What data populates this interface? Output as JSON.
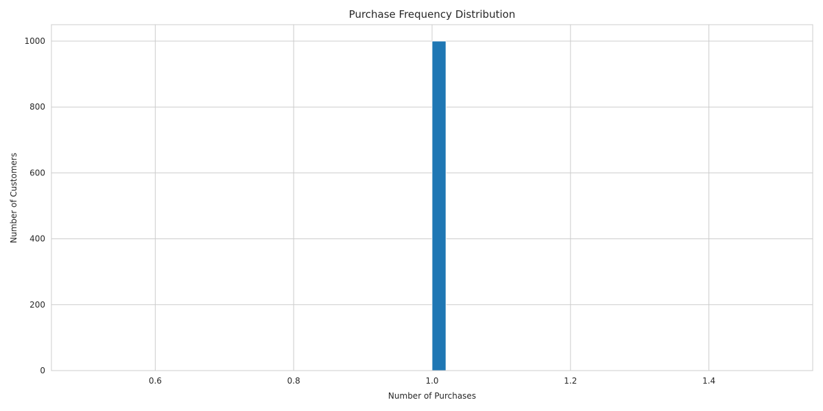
{
  "chart_data": {
    "type": "bar",
    "title": "Purchase Frequency Distribution",
    "xlabel": "Number of Purchases",
    "ylabel": "Number of Customers",
    "xlim": [
      0.45,
      1.55
    ],
    "ylim": [
      0,
      1050
    ],
    "x_ticks": [
      0.6,
      0.8,
      1.0,
      1.2,
      1.4
    ],
    "x_tick_labels": [
      "0.6",
      "0.8",
      "1.0",
      "1.2",
      "1.4"
    ],
    "y_ticks": [
      0,
      200,
      400,
      600,
      800,
      1000
    ],
    "y_tick_labels": [
      "0",
      "200",
      "400",
      "600",
      "800",
      "1000"
    ],
    "bins": [
      {
        "x_start": 1.0,
        "x_end": 1.02,
        "value": 1000
      }
    ],
    "grid": true,
    "bar_color": "#1f77b4"
  }
}
